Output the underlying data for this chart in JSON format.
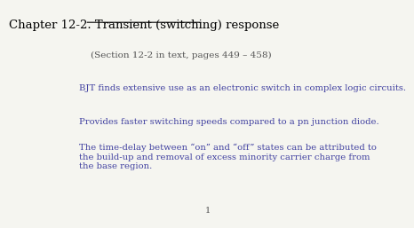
{
  "title": "Chapter 12-2. Transient (switching) response",
  "section": "(Section 12-2 in text, pages 449 – 458)",
  "bullet1": "BJT finds extensive use as an electronic switch in complex logic circuits.",
  "bullet2": "Provides faster switching speeds compared to a pn junction diode.",
  "bullet3": "The time-delay between “on” and “off” states can be attributed to\nthe build-up and removal of excess minority carrier charge from\nthe base region.",
  "page_number": "1",
  "background_color": "#f5f5f0",
  "title_color": "#000000",
  "text_color": "#4040a0",
  "section_color": "#555555",
  "title_fontsize": 9.5,
  "section_fontsize": 7.5,
  "body_fontsize": 7.2,
  "page_num_fontsize": 7.0
}
